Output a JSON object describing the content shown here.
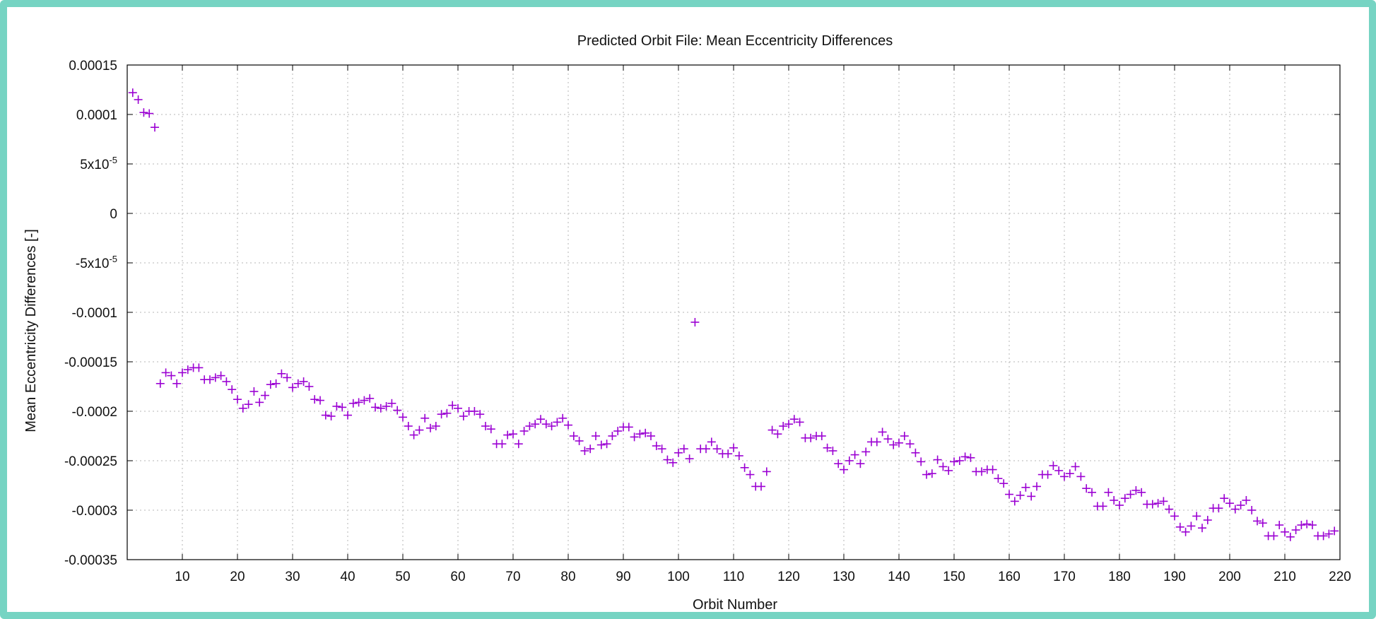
{
  "chart_data": {
    "type": "scatter",
    "title": "Predicted Orbit File: Mean Eccentricity Differences",
    "xlabel": "Orbit Number",
    "ylabel": "Mean Eccentricity Differences [-]",
    "xlim": [
      0,
      220
    ],
    "ylim": [
      -0.00035,
      0.00015
    ],
    "grid": true,
    "marker": "+",
    "marker_color": "#9b00d3",
    "x_ticks": [
      {
        "value": 10,
        "label": "10"
      },
      {
        "value": 20,
        "label": "20"
      },
      {
        "value": 30,
        "label": "30"
      },
      {
        "value": 40,
        "label": "40"
      },
      {
        "value": 50,
        "label": "50"
      },
      {
        "value": 60,
        "label": "60"
      },
      {
        "value": 70,
        "label": "70"
      },
      {
        "value": 80,
        "label": "80"
      },
      {
        "value": 90,
        "label": "90"
      },
      {
        "value": 100,
        "label": "100"
      },
      {
        "value": 110,
        "label": "110"
      },
      {
        "value": 120,
        "label": "120"
      },
      {
        "value": 130,
        "label": "130"
      },
      {
        "value": 140,
        "label": "140"
      },
      {
        "value": 150,
        "label": "150"
      },
      {
        "value": 160,
        "label": "160"
      },
      {
        "value": 170,
        "label": "170"
      },
      {
        "value": 180,
        "label": "180"
      },
      {
        "value": 190,
        "label": "190"
      },
      {
        "value": 200,
        "label": "200"
      },
      {
        "value": 210,
        "label": "210"
      },
      {
        "value": 220,
        "label": "220"
      }
    ],
    "y_ticks": [
      {
        "value": 0.00015,
        "label": "0.00015"
      },
      {
        "value": 0.0001,
        "label": "0.0001"
      },
      {
        "value": 5e-05,
        "label": "5x10",
        "sup": "-5"
      },
      {
        "value": 0,
        "label": "0"
      },
      {
        "value": -5e-05,
        "label": "-5x10",
        "sup": "-5"
      },
      {
        "value": -0.0001,
        "label": "-0.0001"
      },
      {
        "value": -0.00015,
        "label": "-0.00015"
      },
      {
        "value": -0.0002,
        "label": "-0.0002"
      },
      {
        "value": -0.00025,
        "label": "-0.00025"
      },
      {
        "value": -0.0003,
        "label": "-0.0003"
      },
      {
        "value": -0.00035,
        "label": "-0.00035"
      }
    ],
    "x": [
      1,
      2,
      3,
      4,
      5,
      6,
      7,
      8,
      9,
      10,
      11,
      12,
      13,
      14,
      15,
      16,
      17,
      18,
      19,
      20,
      21,
      22,
      23,
      24,
      25,
      26,
      27,
      28,
      29,
      30,
      31,
      32,
      33,
      34,
      35,
      36,
      37,
      38,
      39,
      40,
      41,
      42,
      43,
      44,
      45,
      46,
      47,
      48,
      49,
      50,
      51,
      52,
      53,
      54,
      55,
      56,
      57,
      58,
      59,
      60,
      61,
      62,
      63,
      64,
      65,
      66,
      67,
      68,
      69,
      70,
      71,
      72,
      73,
      74,
      75,
      76,
      77,
      78,
      79,
      80,
      81,
      82,
      83,
      84,
      85,
      86,
      87,
      88,
      89,
      90,
      91,
      92,
      93,
      94,
      95,
      96,
      97,
      98,
      99,
      100,
      101,
      102,
      103,
      104,
      105,
      106,
      107,
      108,
      109,
      110,
      111,
      112,
      113,
      114,
      115,
      116,
      117,
      118,
      119,
      120,
      121,
      122,
      123,
      124,
      125,
      126,
      127,
      128,
      129,
      130,
      131,
      132,
      133,
      134,
      135,
      136,
      137,
      138,
      139,
      140,
      141,
      142,
      143,
      144,
      145,
      146,
      147,
      148,
      149,
      150,
      151,
      152,
      153,
      154,
      155,
      156,
      157,
      158,
      159,
      160,
      161,
      162,
      163,
      164,
      165,
      166,
      167,
      168,
      169,
      170,
      171,
      172,
      173,
      174,
      175,
      176,
      177,
      178,
      179,
      180,
      181,
      182,
      183,
      184,
      185,
      186,
      187,
      188,
      189,
      190,
      191,
      192,
      193,
      194,
      195,
      196,
      197,
      198,
      199,
      200,
      201,
      202,
      203,
      204,
      205,
      206,
      207,
      208,
      209,
      210,
      211,
      212,
      213,
      214,
      215,
      216,
      217,
      218,
      219
    ],
    "y": [
      0.000122,
      0.000115,
      0.000102,
      0.000101,
      8.7e-05,
      -0.000172,
      -0.000161,
      -0.000164,
      -0.000172,
      -0.000161,
      -0.000158,
      -0.000156,
      -0.000156,
      -0.000168,
      -0.000168,
      -0.000166,
      -0.000164,
      -0.00017,
      -0.000178,
      -0.000188,
      -0.000197,
      -0.000193,
      -0.00018,
      -0.000191,
      -0.000184,
      -0.000173,
      -0.000172,
      -0.000162,
      -0.000166,
      -0.000176,
      -0.000172,
      -0.00017,
      -0.000175,
      -0.000188,
      -0.000189,
      -0.000204,
      -0.000205,
      -0.000195,
      -0.000196,
      -0.000204,
      -0.000192,
      -0.000191,
      -0.000189,
      -0.000187,
      -0.000196,
      -0.000197,
      -0.000195,
      -0.000192,
      -0.000199,
      -0.000206,
      -0.000215,
      -0.000224,
      -0.000219,
      -0.000207,
      -0.000217,
      -0.000215,
      -0.000203,
      -0.000202,
      -0.000194,
      -0.000197,
      -0.000205,
      -0.0002,
      -0.0002,
      -0.000203,
      -0.000215,
      -0.000218,
      -0.000233,
      -0.000233,
      -0.000224,
      -0.000223,
      -0.000233,
      -0.00022,
      -0.000215,
      -0.000213,
      -0.000208,
      -0.000213,
      -0.000215,
      -0.000211,
      -0.000207,
      -0.000214,
      -0.000225,
      -0.00023,
      -0.00024,
      -0.000238,
      -0.000225,
      -0.000234,
      -0.000233,
      -0.000225,
      -0.00022,
      -0.000216,
      -0.000216,
      -0.000226,
      -0.000223,
      -0.000222,
      -0.000225,
      -0.000235,
      -0.000238,
      -0.000249,
      -0.000252,
      -0.000242,
      -0.000238,
      -0.000248,
      -0.00011,
      -0.000238,
      -0.000238,
      -0.000231,
      -0.000238,
      -0.000243,
      -0.000243,
      -0.000237,
      -0.000245,
      -0.000257,
      -0.000264,
      -0.000276,
      -0.000276,
      -0.000261,
      -0.000219,
      -0.000223,
      -0.000215,
      -0.000213,
      -0.000208,
      -0.000211,
      -0.000227,
      -0.000227,
      -0.000225,
      -0.000225,
      -0.000237,
      -0.00024,
      -0.000253,
      -0.000259,
      -0.00025,
      -0.000244,
      -0.000253,
      -0.000241,
      -0.000231,
      -0.000231,
      -0.000221,
      -0.000228,
      -0.000234,
      -0.000232,
      -0.000225,
      -0.000233,
      -0.000242,
      -0.000251,
      -0.000264,
      -0.000263,
      -0.000249,
      -0.000256,
      -0.00026,
      -0.000251,
      -0.00025,
      -0.000246,
      -0.000247,
      -0.000261,
      -0.000261,
      -0.000259,
      -0.000259,
      -0.000268,
      -0.000273,
      -0.000284,
      -0.000291,
      -0.000285,
      -0.000277,
      -0.000286,
      -0.000276,
      -0.000264,
      -0.000264,
      -0.000255,
      -0.00026,
      -0.000266,
      -0.000263,
      -0.000256,
      -0.000266,
      -0.000278,
      -0.000282,
      -0.000296,
      -0.000296,
      -0.000282,
      -0.00029,
      -0.000295,
      -0.000288,
      -0.000284,
      -0.00028,
      -0.000282,
      -0.000294,
      -0.000294,
      -0.000293,
      -0.000291,
      -0.000299,
      -0.000306,
      -0.000317,
      -0.000322,
      -0.000316,
      -0.000306,
      -0.000318,
      -0.00031,
      -0.000298,
      -0.000298,
      -0.000288,
      -0.000293,
      -0.000299,
      -0.000295,
      -0.00029,
      -0.0003,
      -0.000311,
      -0.000313,
      -0.000326,
      -0.000326,
      -0.000315,
      -0.000322,
      -0.000327,
      -0.00032,
      -0.000315,
      -0.000314,
      -0.000315,
      -0.000326,
      -0.000326,
      -0.000324,
      -0.000321
    ]
  }
}
